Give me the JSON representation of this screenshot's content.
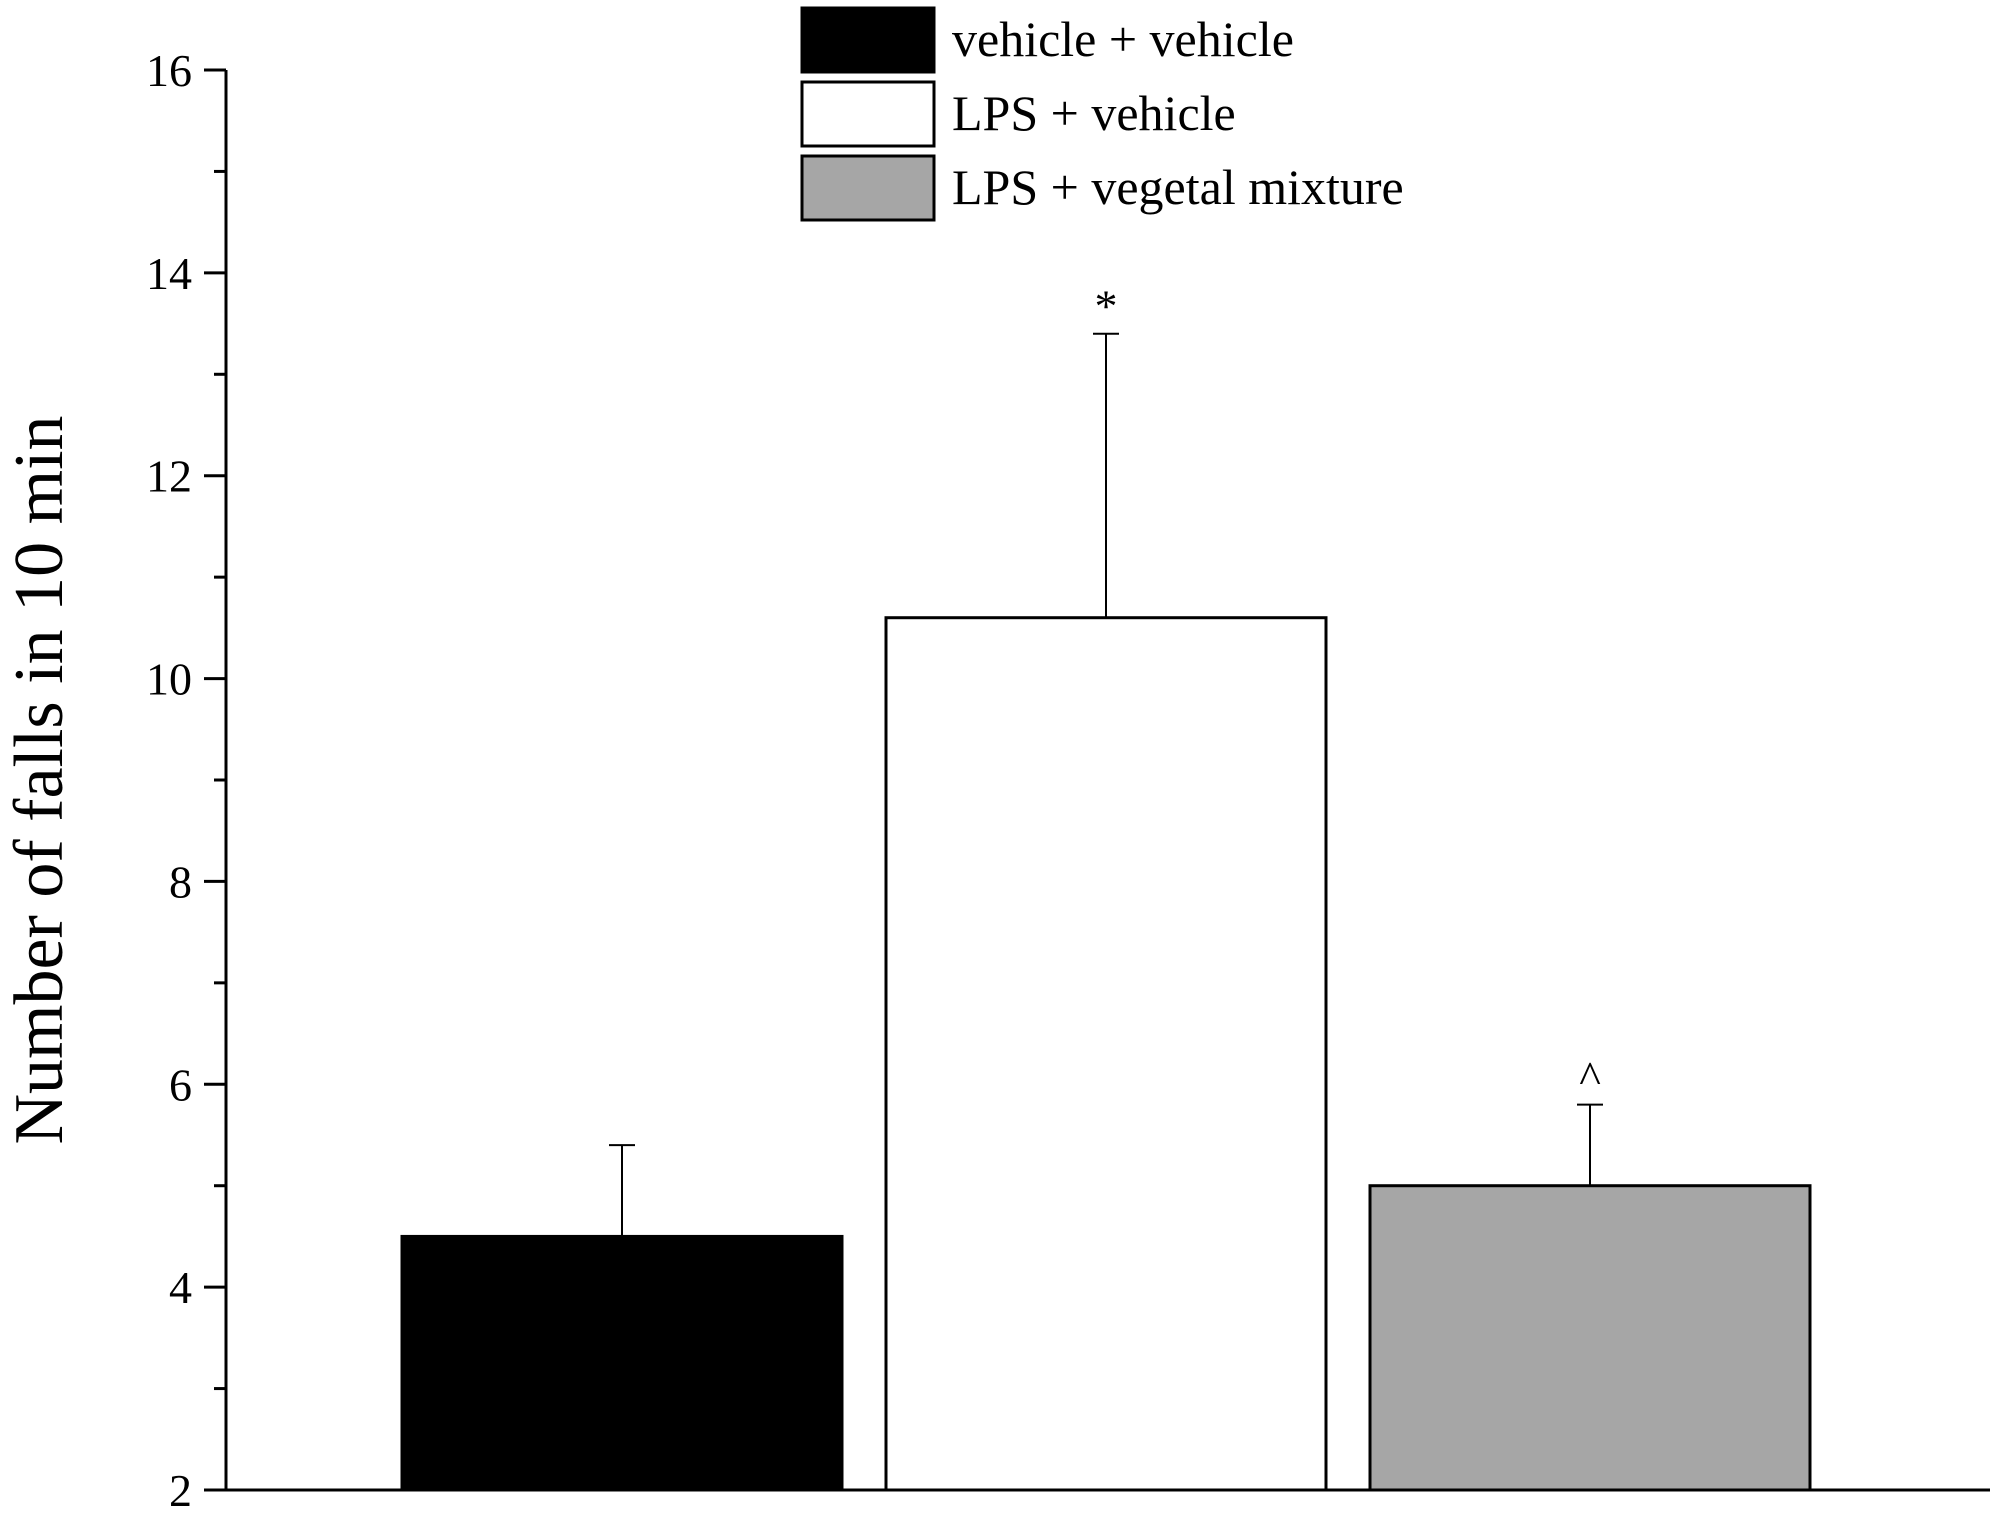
{
  "chart_data": {
    "type": "bar",
    "title": "",
    "xlabel": "",
    "ylabel": "Number of falls in 10 min",
    "ylim": [
      2,
      16
    ],
    "yticks": [
      2,
      4,
      6,
      8,
      10,
      12,
      14,
      16
    ],
    "ytick_labels": [
      "2",
      "4",
      "6",
      "8",
      "10",
      "12",
      "14",
      "16"
    ],
    "minor_tick_step": 1,
    "grid": false,
    "legend_position": "top-center",
    "series": [
      {
        "name": "vehicle + vehicle",
        "value": 4.5,
        "error": 0.9,
        "color": "#000000",
        "annotation": ""
      },
      {
        "name": "LPS + vehicle",
        "value": 10.6,
        "error": 2.8,
        "color": "#ffffff",
        "annotation": "*"
      },
      {
        "name": "LPS + vegetal mixture",
        "value": 5.0,
        "error": 0.8,
        "color": "#a6a6a6",
        "annotation": "^"
      }
    ]
  }
}
